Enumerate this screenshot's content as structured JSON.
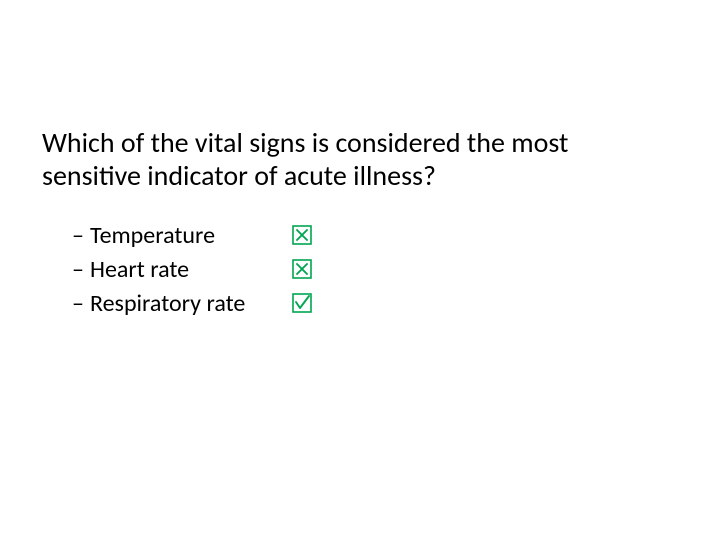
{
  "question": "Which of the vital signs is considered the most sensitive indicator of acute illness?",
  "options": [
    {
      "label": "Temperature",
      "correct": false
    },
    {
      "label": "Heart rate",
      "correct": false
    },
    {
      "label": "Respiratory rate",
      "correct": true
    }
  ],
  "style": {
    "question_fontsize": 28,
    "option_fontsize": 24,
    "text_color": "#000000",
    "background_color": "#ffffff",
    "icon_color": "#00a651",
    "icon_size": 20,
    "icon_stroke": 1.6,
    "font_family": "Calibri"
  }
}
